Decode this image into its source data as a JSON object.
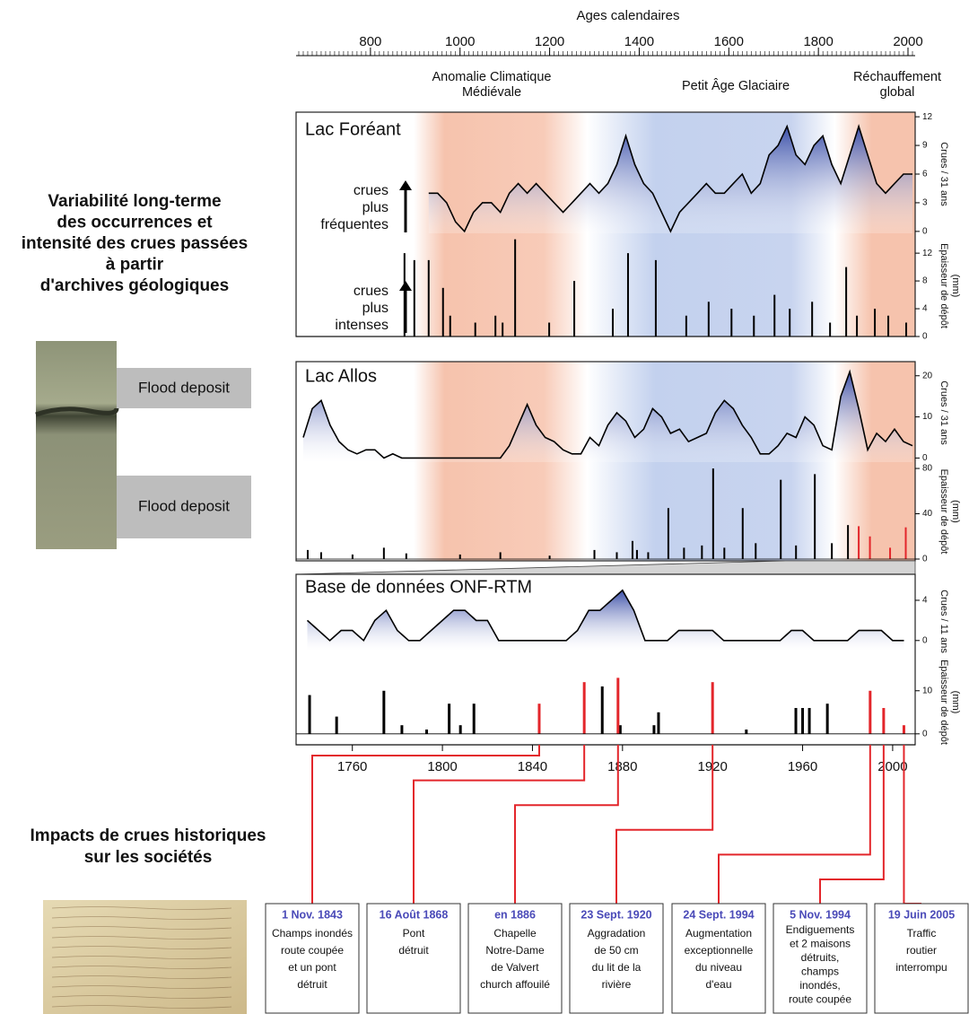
{
  "chart_data": [
    {
      "type": "axis",
      "title": "Ages calendaires",
      "xlim": [
        634,
        2016
      ],
      "xticks": [
        800,
        1000,
        1200,
        1400,
        1600,
        1800,
        2000
      ],
      "minor_tick_step": 10,
      "annotations": [
        [
          "Anomalie Climatique",
          "Médiévale"
        ],
        [
          "Petit Âge Glaciaire"
        ],
        [
          "Réchauffement",
          "global"
        ]
      ]
    },
    {
      "type": "area",
      "title": "Lac Foréant",
      "annotation": [
        "crues",
        "plus",
        "fréquentes"
      ],
      "ylabel": "Crues / 31 ans",
      "color": "#3b4fa8",
      "x": [
        930,
        950,
        970,
        990,
        1010,
        1030,
        1050,
        1070,
        1090,
        1110,
        1130,
        1150,
        1170,
        1190,
        1210,
        1230,
        1250,
        1270,
        1290,
        1310,
        1330,
        1350,
        1370,
        1390,
        1410,
        1430,
        1450,
        1470,
        1490,
        1510,
        1530,
        1550,
        1570,
        1590,
        1610,
        1630,
        1650,
        1670,
        1690,
        1710,
        1730,
        1750,
        1770,
        1790,
        1810,
        1830,
        1850,
        1870,
        1890,
        1910,
        1930,
        1950,
        1970,
        1990,
        2010
      ],
      "values": [
        4,
        4,
        3,
        1,
        0,
        2,
        3,
        3,
        2,
        4,
        5,
        4,
        5,
        4,
        3,
        2,
        3,
        4,
        5,
        4,
        5,
        7,
        10,
        7,
        5,
        4,
        2,
        0,
        2,
        3,
        4,
        5,
        4,
        4,
        5,
        6,
        4,
        5,
        8,
        9,
        11,
        8,
        7,
        9,
        10,
        7,
        5,
        8,
        11,
        8,
        5,
        4,
        5,
        6,
        6
      ],
      "xlim": [
        634,
        2016
      ],
      "ylim": [
        -0.2,
        12.2
      ],
      "yticks": [
        0,
        3,
        6,
        9,
        12
      ]
    },
    {
      "type": "bar",
      "annotation": [
        "crues",
        "plus",
        "intenses"
      ],
      "ylabel": [
        "Epaisseur de dépôt",
        "(mm)"
      ],
      "series": [
        {
          "color": "#000000",
          "x": [
            876,
            898,
            930,
            962,
            978,
            1034,
            1079,
            1095,
            1123,
            1199,
            1255,
            1341,
            1375,
            1437,
            1505,
            1555,
            1606,
            1656,
            1702,
            1736,
            1786,
            1826,
            1862,
            1886,
            1926,
            1956,
            1996
          ],
          "values": [
            12,
            11,
            11,
            7,
            3,
            2,
            3,
            2,
            14,
            2,
            8,
            4,
            12,
            11,
            3,
            5,
            4,
            3,
            6,
            4,
            5,
            2,
            10,
            3,
            4,
            3,
            2
          ]
        }
      ],
      "xlim": [
        634,
        2016
      ],
      "ylim": [
        0,
        14.6
      ],
      "yticks": [
        0,
        4,
        8,
        12
      ]
    },
    {
      "type": "area",
      "title": "Lac Allos",
      "ylabel": "Crues / 31 ans",
      "color": "#3b4fa8",
      "x": [
        650,
        670,
        690,
        710,
        730,
        750,
        770,
        790,
        810,
        830,
        850,
        870,
        890,
        910,
        930,
        950,
        970,
        990,
        1010,
        1030,
        1050,
        1070,
        1090,
        1110,
        1130,
        1150,
        1170,
        1190,
        1210,
        1230,
        1250,
        1270,
        1290,
        1310,
        1330,
        1350,
        1370,
        1390,
        1410,
        1430,
        1450,
        1470,
        1490,
        1510,
        1530,
        1550,
        1570,
        1590,
        1610,
        1630,
        1650,
        1670,
        1690,
        1710,
        1730,
        1750,
        1770,
        1790,
        1810,
        1830,
        1850,
        1870,
        1890,
        1910,
        1930,
        1950,
        1970,
        1990,
        2010
      ],
      "values": [
        5,
        12,
        14,
        8,
        4,
        2,
        1,
        2,
        2,
        0,
        1,
        0,
        0,
        0,
        0,
        0,
        0,
        0,
        0,
        0,
        0,
        0,
        0,
        3,
        8,
        13,
        8,
        5,
        4,
        2,
        1,
        1,
        5,
        3,
        8,
        11,
        9,
        5,
        7,
        12,
        10,
        6,
        7,
        4,
        5,
        6,
        11,
        14,
        12,
        8,
        5,
        1,
        1,
        3,
        6,
        5,
        10,
        8,
        3,
        2,
        15,
        21,
        12,
        2,
        6,
        4,
        7,
        4,
        3
      ],
      "xlim": [
        634,
        2016
      ],
      "ylim": [
        -1,
        23
      ],
      "yticks": [
        0,
        10,
        20
      ]
    },
    {
      "type": "bar",
      "ylabel": [
        "Epaisseur de dépôt",
        "(mm)"
      ],
      "series": [
        {
          "color": "#000000",
          "x": [
            660,
            690,
            760,
            830,
            880,
            1000,
            1090,
            1200,
            1300,
            1350,
            1385,
            1395,
            1420,
            1465,
            1500,
            1540,
            1565,
            1590,
            1631,
            1660,
            1716,
            1750,
            1792,
            1830,
            1866
          ],
          "values": [
            8,
            6,
            4,
            10,
            5,
            4,
            6,
            3,
            8,
            6,
            16,
            8,
            6,
            45,
            10,
            12,
            80,
            10,
            45,
            14,
            70,
            12,
            75,
            14,
            30
          ]
        },
        {
          "color": "#e3262b",
          "x": [
            1890,
            1915,
            1960,
            1995
          ],
          "values": [
            29,
            20,
            10,
            28
          ]
        }
      ],
      "xlim": [
        634,
        2016
      ],
      "ylim": [
        0,
        84
      ],
      "yticks": [
        0,
        40,
        80
      ]
    },
    {
      "type": "area",
      "title": "Base de données ONF-RTM",
      "ylabel": "Crues / 11 ans",
      "color": "#3b4fa8",
      "x": [
        1740,
        1745,
        1750,
        1755,
        1760,
        1765,
        1770,
        1775,
        1780,
        1785,
        1790,
        1795,
        1800,
        1805,
        1810,
        1815,
        1820,
        1825,
        1830,
        1835,
        1840,
        1845,
        1850,
        1855,
        1860,
        1865,
        1870,
        1875,
        1880,
        1885,
        1890,
        1895,
        1900,
        1905,
        1910,
        1915,
        1920,
        1925,
        1930,
        1935,
        1940,
        1945,
        1950,
        1955,
        1960,
        1965,
        1970,
        1975,
        1980,
        1985,
        1990,
        1995,
        2000,
        2005
      ],
      "values": [
        2,
        1,
        0,
        1,
        1,
        0,
        2,
        3,
        1,
        0,
        0,
        1,
        2,
        3,
        3,
        2,
        2,
        0,
        0,
        0,
        0,
        0,
        0,
        0,
        1,
        3,
        3,
        4,
        5,
        3,
        0,
        0,
        0,
        1,
        1,
        1,
        1,
        0,
        0,
        0,
        0,
        0,
        0,
        1,
        1,
        0,
        0,
        0,
        0,
        1,
        1,
        1,
        0,
        0
      ],
      "xlim": [
        1735,
        2010
      ],
      "ylim": [
        -1,
        4.8
      ],
      "yticks": [
        0,
        4
      ]
    },
    {
      "type": "bar",
      "ylabel": [
        "Epaisseur de dépôt",
        "(mm)"
      ],
      "series": [
        {
          "color": "#000000",
          "x": [
            1741,
            1753,
            1774,
            1782,
            1793,
            1803,
            1808,
            1814,
            1871,
            1879,
            1894,
            1896,
            1935,
            1957,
            1960,
            1963,
            1971
          ],
          "values": [
            9,
            4,
            10,
            2,
            1,
            7,
            2,
            7,
            11,
            2,
            2,
            5,
            1,
            6,
            6,
            6,
            7
          ]
        },
        {
          "color": "#e3262b",
          "x": [
            1843,
            1863,
            1878,
            1920,
            1990,
            1996,
            2005
          ],
          "values": [
            7,
            12,
            13,
            12,
            10,
            6,
            2
          ]
        }
      ],
      "xlim": [
        1735,
        2010
      ],
      "ylim": [
        -1.5,
        16.2
      ],
      "yticks": [
        0,
        10
      ],
      "xticks": [
        1760,
        1800,
        1840,
        1880,
        1920,
        1960,
        2000
      ]
    }
  ],
  "left_panel": {
    "title": [
      "Variabilité long-terme",
      "des occurrences et",
      "intensité des crues passées",
      "à partir",
      "d'archives géologiques"
    ],
    "core_labels": [
      "Flood deposit",
      "Flood deposit"
    ],
    "impacts_title": [
      "Impacts de crues historiques",
      "sur les sociétés"
    ]
  },
  "events": [
    {
      "date": "1 Nov. 1843",
      "text": [
        "Champs inondés",
        "route coupée",
        "et un pont",
        "détruit"
      ]
    },
    {
      "date": "16 Août 1868",
      "text": [
        "Pont",
        "détruit"
      ]
    },
    {
      "date": "en 1886",
      "text": [
        "Chapelle",
        "Notre-Dame",
        "de Valvert",
        "church affouilé"
      ]
    },
    {
      "date": "23 Sept. 1920",
      "text": [
        "Aggradation",
        "de 50 cm",
        "du lit de la",
        "rivière"
      ]
    },
    {
      "date": "24 Sept. 1994",
      "text": [
        "Augmentation",
        "exceptionnelle",
        "du niveau",
        "d'eau"
      ]
    },
    {
      "date": "5 Nov. 1994",
      "text": [
        "Endiguements",
        "et 2 maisons",
        "détruits,",
        "champs",
        "inondés,",
        "route coupée"
      ]
    },
    {
      "date": "19 Juin 2005",
      "text": [
        "Traffic",
        "routier",
        "interrompu"
      ]
    }
  ]
}
